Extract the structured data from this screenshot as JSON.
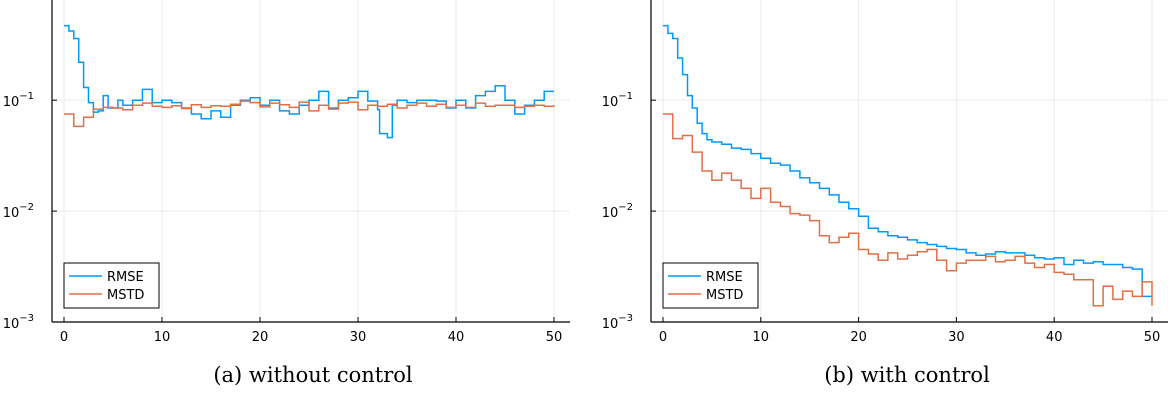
{
  "chart_data": [
    {
      "type": "line",
      "caption": "(a) without control",
      "xlim": [
        0,
        50
      ],
      "ylim": [
        0.001,
        0.8
      ],
      "yscale": "log",
      "x_ticks": [
        0,
        10,
        20,
        30,
        40,
        50
      ],
      "y_ticks": [
        {
          "value": 0.001,
          "base": "10",
          "exp": "−3"
        },
        {
          "value": 0.01,
          "base": "10",
          "exp": "−2"
        },
        {
          "value": 0.1,
          "base": "10",
          "exp": "−1"
        }
      ],
      "grid": true,
      "legend_position": "bottom-left",
      "series": [
        {
          "name": "RMSE",
          "color": "#009AFA",
          "x": [
            0,
            0.5,
            1,
            1.5,
            2,
            2.5,
            3,
            3.5,
            4,
            4.5,
            5,
            5.5,
            6,
            7,
            8,
            9,
            10,
            11,
            12,
            13,
            14,
            15,
            16,
            17,
            18,
            19,
            20,
            21,
            22,
            23,
            24,
            25,
            26,
            27,
            28,
            29,
            30,
            31,
            32,
            32.2,
            33,
            33.5,
            34,
            35,
            36,
            37,
            38,
            39,
            40,
            41,
            42,
            43,
            44,
            45,
            46,
            47,
            48,
            49,
            50
          ],
          "y": [
            0.47,
            0.42,
            0.36,
            0.22,
            0.13,
            0.095,
            0.078,
            0.08,
            0.11,
            0.085,
            0.085,
            0.1,
            0.09,
            0.1,
            0.125,
            0.095,
            0.1,
            0.095,
            0.085,
            0.075,
            0.068,
            0.08,
            0.07,
            0.09,
            0.1,
            0.105,
            0.09,
            0.1,
            0.08,
            0.075,
            0.09,
            0.1,
            0.12,
            0.085,
            0.1,
            0.105,
            0.12,
            0.098,
            0.082,
            0.05,
            0.046,
            0.09,
            0.1,
            0.095,
            0.1,
            0.1,
            0.098,
            0.085,
            0.1,
            0.085,
            0.11,
            0.12,
            0.135,
            0.1,
            0.075,
            0.09,
            0.1,
            0.12,
            0.12
          ]
        },
        {
          "name": "MSTD",
          "color": "#E26F46",
          "x": [
            0,
            1,
            2,
            3,
            4,
            5,
            6,
            7,
            8,
            9,
            10,
            11,
            12,
            13,
            14,
            15,
            16,
            17,
            18,
            19,
            20,
            21,
            22,
            23,
            24,
            25,
            26,
            27,
            28,
            29,
            30,
            31,
            32,
            33,
            34,
            35,
            36,
            37,
            38,
            39,
            40,
            41,
            42,
            43,
            44,
            45,
            46,
            47,
            48,
            49,
            50
          ],
          "y": [
            0.075,
            0.058,
            0.07,
            0.083,
            0.086,
            0.085,
            0.082,
            0.09,
            0.094,
            0.088,
            0.086,
            0.089,
            0.084,
            0.091,
            0.086,
            0.089,
            0.088,
            0.092,
            0.098,
            0.095,
            0.087,
            0.094,
            0.091,
            0.086,
            0.096,
            0.08,
            0.09,
            0.083,
            0.094,
            0.096,
            0.082,
            0.09,
            0.088,
            0.092,
            0.085,
            0.09,
            0.094,
            0.088,
            0.092,
            0.086,
            0.09,
            0.086,
            0.094,
            0.088,
            0.09,
            0.09,
            0.086,
            0.088,
            0.09,
            0.088,
            0.09
          ]
        }
      ]
    },
    {
      "type": "line",
      "caption": "(b) with control",
      "xlim": [
        0,
        50
      ],
      "ylim": [
        0.001,
        0.8
      ],
      "yscale": "log",
      "x_ticks": [
        0,
        10,
        20,
        30,
        40,
        50
      ],
      "y_ticks": [
        {
          "value": 0.001,
          "base": "10",
          "exp": "−3"
        },
        {
          "value": 0.01,
          "base": "10",
          "exp": "−2"
        },
        {
          "value": 0.1,
          "base": "10",
          "exp": "−1"
        }
      ],
      "grid": true,
      "legend_position": "bottom-left",
      "series": [
        {
          "name": "RMSE",
          "color": "#009AFA",
          "x": [
            0,
            0.5,
            1,
            1.5,
            2,
            2.5,
            3,
            3.5,
            4,
            4.5,
            5,
            6,
            7,
            8,
            9,
            10,
            11,
            12,
            13,
            14,
            15,
            16,
            17,
            18,
            19,
            20,
            21,
            22,
            23,
            24,
            25,
            26,
            27,
            28,
            29,
            30,
            31,
            32,
            33,
            34,
            35,
            36,
            37,
            38,
            39,
            40,
            41,
            42,
            43,
            44,
            45,
            46,
            47,
            48,
            49,
            50
          ],
          "y": [
            0.47,
            0.4,
            0.36,
            0.24,
            0.17,
            0.11,
            0.085,
            0.062,
            0.05,
            0.044,
            0.042,
            0.04,
            0.037,
            0.036,
            0.033,
            0.03,
            0.027,
            0.026,
            0.023,
            0.02,
            0.018,
            0.016,
            0.014,
            0.012,
            0.0105,
            0.009,
            0.007,
            0.0065,
            0.006,
            0.0058,
            0.0055,
            0.0052,
            0.005,
            0.0048,
            0.0046,
            0.0045,
            0.0042,
            0.004,
            0.0041,
            0.0043,
            0.0042,
            0.0042,
            0.004,
            0.0038,
            0.0037,
            0.0038,
            0.0033,
            0.0036,
            0.0034,
            0.0035,
            0.0033,
            0.0033,
            0.0031,
            0.003,
            0.0017,
            0.0017
          ]
        },
        {
          "name": "MSTD",
          "color": "#E26F46",
          "x": [
            0,
            1,
            2,
            3,
            4,
            5,
            6,
            7,
            8,
            9,
            10,
            11,
            12,
            13,
            14,
            15,
            16,
            17,
            18,
            19,
            20,
            21,
            22,
            23,
            24,
            25,
            26,
            27,
            28,
            29,
            30,
            31,
            32,
            33,
            34,
            35,
            36,
            37,
            38,
            39,
            40,
            41,
            42,
            43,
            44,
            45,
            46,
            47,
            48,
            49,
            50
          ],
          "y": [
            0.075,
            0.045,
            0.048,
            0.034,
            0.023,
            0.019,
            0.022,
            0.019,
            0.016,
            0.013,
            0.016,
            0.012,
            0.011,
            0.0095,
            0.0092,
            0.0082,
            0.006,
            0.0052,
            0.0058,
            0.0063,
            0.0045,
            0.0041,
            0.0036,
            0.0042,
            0.0037,
            0.004,
            0.0043,
            0.0045,
            0.0036,
            0.0029,
            0.0034,
            0.0036,
            0.0036,
            0.0039,
            0.0035,
            0.0036,
            0.0039,
            0.0034,
            0.0031,
            0.0033,
            0.0028,
            0.0027,
            0.0024,
            0.0024,
            0.0014,
            0.0021,
            0.0016,
            0.0019,
            0.0017,
            0.0023,
            0.0014
          ]
        }
      ]
    }
  ]
}
